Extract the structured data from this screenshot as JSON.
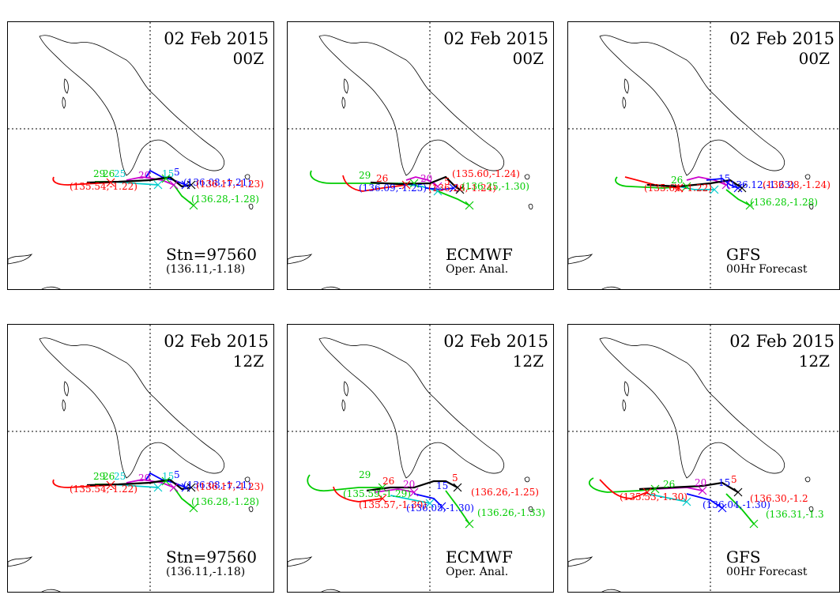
{
  "panels": [
    {
      "date": "02 Feb 2015",
      "hour": "00Z",
      "source": "Stn=97560",
      "sub": "(136.11,-1.18)",
      "labels": [
        [
          "29",
          "#00cc00"
        ],
        [
          "26",
          "#00cc00"
        ],
        [
          "25",
          "#00cccc"
        ],
        [
          "20",
          "#cc00cc"
        ],
        [
          "15",
          "#00cccc"
        ],
        [
          "5",
          "#0000ff"
        ],
        [
          "(136.08,-1.21)",
          "#0000ff"
        ],
        [
          "(136.17,-1.23)",
          "#ff0000"
        ],
        [
          "(136.28,-1.28)",
          "#00cc00"
        ],
        [
          "(135.54,-1.22)",
          "#ff0000"
        ]
      ]
    },
    {
      "date": "02 Feb 2015",
      "hour": "00Z",
      "source": "ECMWF",
      "sub": "Oper. Anal.",
      "labels": [
        [
          "29",
          "#00cc00"
        ],
        [
          "26",
          "#ff0000"
        ],
        [
          "20",
          "#cc00cc"
        ],
        [
          "5",
          "#ff0000"
        ],
        [
          "(135.60,-1.24)",
          "#ff0000"
        ],
        [
          "(136.09,-1.25)",
          "#0000ff"
        ],
        [
          "(136.26,-1.24)",
          "#ff0000"
        ],
        [
          "(136.25,-1.30)",
          "#00cc00"
        ]
      ]
    },
    {
      "date": "02 Feb 2015",
      "hour": "00Z",
      "source": "GFS",
      "sub": "00Hr Forecast",
      "labels": [
        [
          "26",
          "#00cc00"
        ],
        [
          "15",
          "#0000ff"
        ],
        [
          "(135.64,-1.22)",
          "#ff0000"
        ],
        [
          "(136.12,-1.23)",
          "#0000ff"
        ],
        [
          "(136.28,-1.24)",
          "#ff0000"
        ],
        [
          "(136.28,-1.28)",
          "#00cc00"
        ]
      ]
    },
    {
      "date": "02 Feb 2015",
      "hour": "12Z",
      "source": "Stn=97560",
      "sub": "(136.11,-1.18)",
      "labels": [
        [
          "29",
          "#00cc00"
        ],
        [
          "26",
          "#00cc00"
        ],
        [
          "25",
          "#00cccc"
        ],
        [
          "20",
          "#cc00cc"
        ],
        [
          "15",
          "#00cccc"
        ],
        [
          "5",
          "#0000ff"
        ],
        [
          "(136.08,-1.21)",
          "#0000ff"
        ],
        [
          "(136.17,-1.23)",
          "#ff0000"
        ],
        [
          "(136.28,-1.28)",
          "#00cc00"
        ],
        [
          "(135.54,-1.22)",
          "#ff0000"
        ]
      ]
    },
    {
      "date": "02 Feb 2015",
      "hour": "12Z",
      "source": "ECMWF",
      "sub": "Oper. Anal.",
      "labels": [
        [
          "29",
          "#00cc00"
        ],
        [
          "26",
          "#ff0000"
        ],
        [
          "20",
          "#cc00cc"
        ],
        [
          "15",
          "#0000ff"
        ],
        [
          "5",
          "#ff0000"
        ],
        [
          "(135.59,-1.29)",
          "#00cc00"
        ],
        [
          "(135.57,-1.30)",
          "#ff0000"
        ],
        [
          "(136.05,-1.30)",
          "#0000ff"
        ],
        [
          "(136.26,-1.25)",
          "#ff0000"
        ],
        [
          "(136.26,-1.33)",
          "#00cc00"
        ]
      ]
    },
    {
      "date": "02 Feb 2015",
      "hour": "12Z",
      "source": "GFS",
      "sub": "00Hr Forecast",
      "labels": [
        [
          "26",
          "#00cc00"
        ],
        [
          "20",
          "#cc00cc"
        ],
        [
          "15",
          "#0000ff"
        ],
        [
          "5",
          "#ff0000"
        ],
        [
          "(135.53,-1.30)",
          "#ff0000"
        ],
        [
          "(136.04,-1.30)",
          "#0000ff"
        ],
        [
          "(136.30,-1.2",
          "#ff0000"
        ],
        [
          "(136.31,-1.3",
          "#00cc00"
        ]
      ]
    }
  ]
}
